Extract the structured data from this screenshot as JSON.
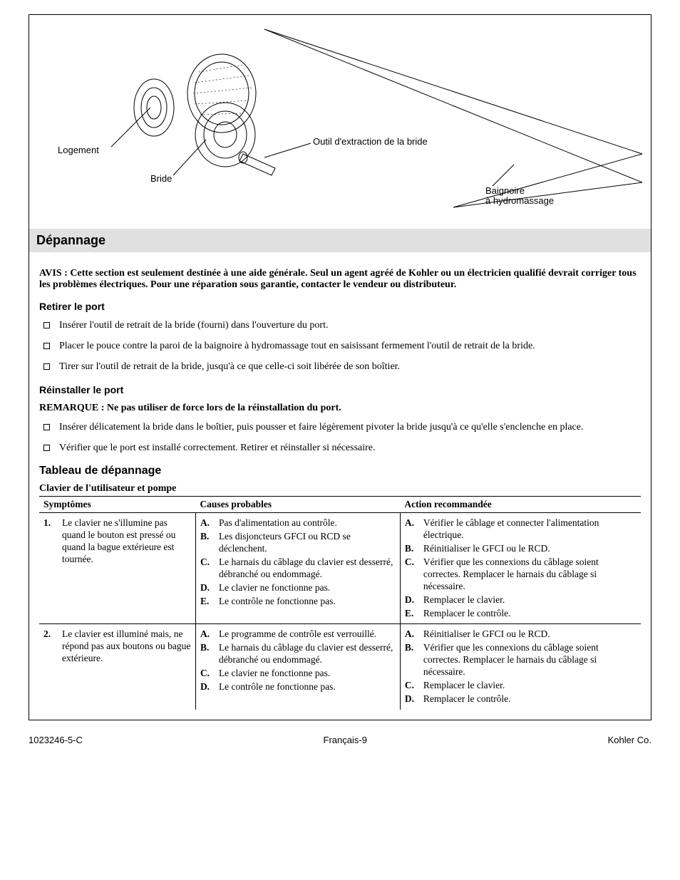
{
  "figure": {
    "labels": {
      "logement": "Logement",
      "bride": "Bride",
      "outil": "Outil d'extraction de la bride",
      "baignoire_l1": "Baignoire",
      "baignoire_l2": "à hydromassage"
    }
  },
  "section": {
    "title": "Dépannage",
    "notice": "AVIS : Cette section est seulement destinée à une aide générale. Seul un agent agréé de Kohler ou un électricien qualifié devrait corriger tous les problèmes électriques. Pour une réparation sous garantie, contacter le vendeur ou distributeur.",
    "retirer": {
      "heading": "Retirer le port",
      "items": [
        "Insérer l'outil de retrait de la bride (fourni) dans l'ouverture du port.",
        "Placer le pouce contre la paroi de la baignoire à hydromassage tout en saisissant fermement l'outil de retrait de la bride.",
        "Tirer sur l'outil de retrait de la bride, jusqu'à ce que celle-ci soit libérée de son boîtier."
      ]
    },
    "reinstaller": {
      "heading": "Réinstaller le port",
      "remark": "REMARQUE : Ne pas utiliser de force lors de la réinstallation du port.",
      "items": [
        "Insérer délicatement la bride dans le boîtier, puis pousser et faire légèrement pivoter la bride jusqu'à ce qu'elle s'enclenche en place.",
        "Vérifier que le port est installé correctement. Retirer et réinstaller si nécessaire."
      ]
    }
  },
  "table": {
    "title": "Tableau de dépannage",
    "caption": "Clavier de l'utilisateur et pompe",
    "headers": {
      "symptoms": "Symptômes",
      "causes": "Causes probables",
      "actions": "Action recommandée"
    },
    "col_widths": [
      "26%",
      "34%",
      "40%"
    ],
    "rows": [
      {
        "symptom_num": "1.",
        "symptom": "Le clavier ne s'illumine pas quand le bouton est pressé ou quand la bague extérieure est tournée.",
        "causes": [
          {
            "mk": "A.",
            "txt": "Pas d'alimentation au contrôle."
          },
          {
            "mk": "B.",
            "txt": "Les disjoncteurs GFCI ou RCD se déclenchent."
          },
          {
            "mk": "C.",
            "txt": "Le harnais du câblage du clavier est desserré, débranché ou endommagé."
          },
          {
            "mk": "D.",
            "txt": "Le clavier ne fonctionne pas."
          },
          {
            "mk": "E.",
            "txt": "Le contrôle ne fonctionne pas."
          }
        ],
        "actions": [
          {
            "mk": "A.",
            "txt": "Vérifier le câblage et connecter l'alimentation électrique."
          },
          {
            "mk": "B.",
            "txt": "Réinitialiser le GFCI ou le RCD."
          },
          {
            "mk": "C.",
            "txt": "Vérifier que les connexions du câblage soient correctes. Remplacer le harnais du câblage si nécessaire."
          },
          {
            "mk": "D.",
            "txt": "Remplacer le clavier."
          },
          {
            "mk": "E.",
            "txt": "Remplacer le contrôle."
          }
        ]
      },
      {
        "symptom_num": "2.",
        "symptom": "Le clavier est illuminé mais, ne répond pas aux boutons ou bague extérieure.",
        "causes": [
          {
            "mk": "A.",
            "txt": "Le programme de contrôle est verrouillé."
          },
          {
            "mk": "B.",
            "txt": "Le harnais du câblage du clavier est desserré, débranché ou endommagé."
          },
          {
            "mk": "C.",
            "txt": "Le clavier ne fonctionne pas."
          },
          {
            "mk": "D.",
            "txt": "Le contrôle ne fonctionne pas."
          }
        ],
        "actions": [
          {
            "mk": "A.",
            "txt": "Réinitialiser le GFCI ou le RCD."
          },
          {
            "mk": "B.",
            "txt": "Vérifier que les connexions du câblage soient correctes. Remplacer le harnais du câblage si nécessaire."
          },
          {
            "mk": "C.",
            "txt": "Remplacer le clavier."
          },
          {
            "mk": "D.",
            "txt": "Remplacer le contrôle."
          }
        ]
      }
    ]
  },
  "footer": {
    "left": "1023246-5-C",
    "center": "Français-9",
    "right": "Kohler Co."
  }
}
